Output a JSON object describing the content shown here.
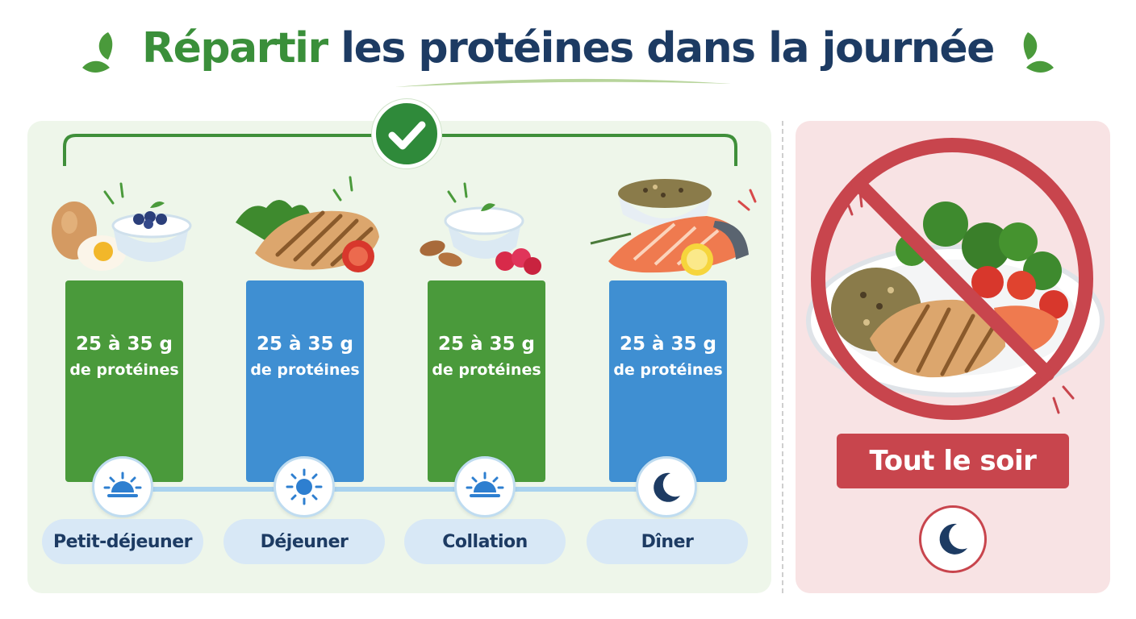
{
  "title": {
    "highlight": "Répartir",
    "rest": " les protéines dans la journée"
  },
  "colors": {
    "green": "#4a9a3b",
    "blue": "#3f8fd2",
    "navy": "#1d3b63",
    "red": "#c8454d",
    "left_panel_bg": "#eef6ea",
    "right_panel_bg": "#f8e3e4"
  },
  "meals": [
    {
      "amount": "25 à 35 g",
      "unit": "de protéines",
      "name": "Petit-déjeuner",
      "color": "green",
      "icon": "sunrise-icon",
      "food": "egg-yogurt-blueberries"
    },
    {
      "amount": "25 à 35 g",
      "unit": "de protéines",
      "name": "Déjeuner",
      "color": "blue",
      "icon": "sun-icon",
      "food": "grilled-chicken-salad"
    },
    {
      "amount": "25 à 35 g",
      "unit": "de protéines",
      "name": "Collation",
      "color": "green",
      "icon": "sunrise-icon",
      "food": "yogurt-almonds-raspberries"
    },
    {
      "amount": "25 à 35 g",
      "unit": "de protéines",
      "name": "Dîner",
      "color": "blue",
      "icon": "moon-icon",
      "food": "salmon-quinoa-lentils"
    }
  ],
  "check_icon": "check-icon",
  "forbidden": {
    "label": "Tout le soir",
    "icon": "moon-icon",
    "symbol": "prohibited-icon",
    "food": "big-plate-chicken-broccoli-grains"
  }
}
